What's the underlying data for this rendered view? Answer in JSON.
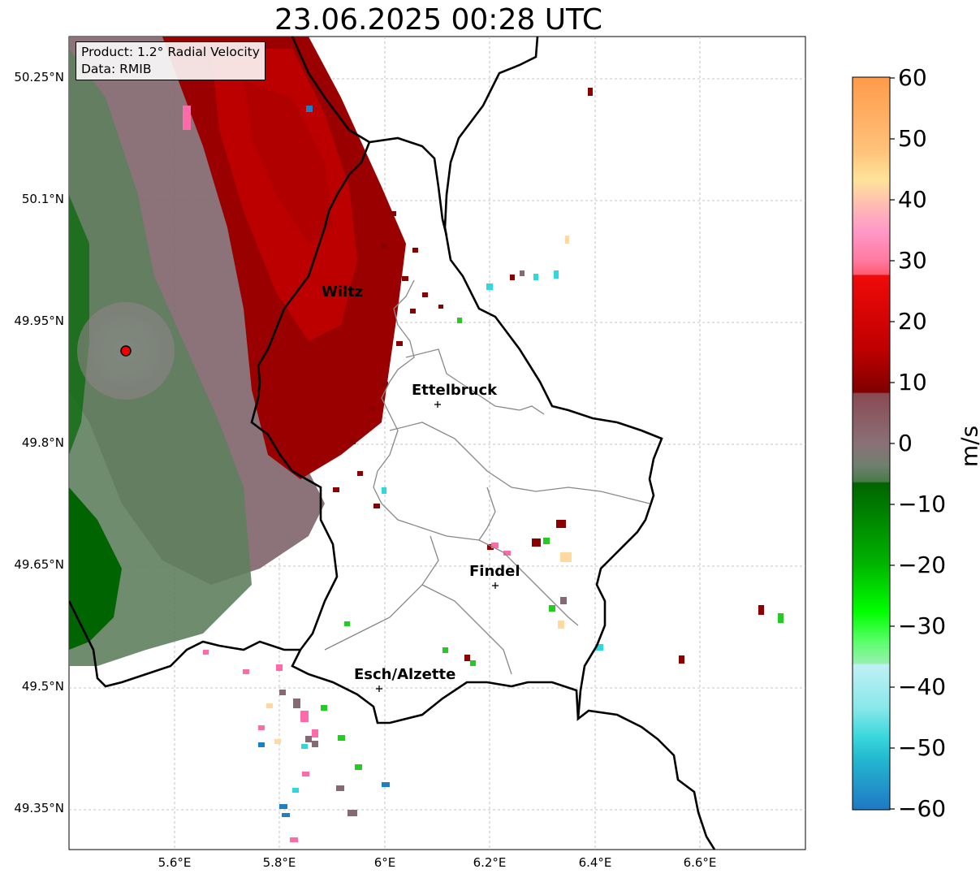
{
  "title": "23.06.2025 00:28 UTC",
  "info_box": {
    "product": "Product: 1.2° Radial Velocity",
    "data": "Data: RMIB"
  },
  "lat_labels": [
    "50.25°N",
    "50.1°N",
    "49.95°N",
    "49.8°N",
    "49.65°N",
    "49.5°N",
    "49.35°N"
  ],
  "lon_labels": [
    "5.6°E",
    "5.8°E",
    "6°E",
    "6.2°E",
    "6.4°E",
    "6.6°E"
  ],
  "cities": [
    {
      "name": "Wiltz",
      "lon": 5.93,
      "lat": 49.97
    },
    {
      "name": "Ettelbruck",
      "lon": 6.1,
      "lat": 49.85
    },
    {
      "name": "Findel",
      "lon": 6.21,
      "lat": 49.63
    },
    {
      "name": "Esch/Alzette",
      "lon": 5.99,
      "lat": 49.5
    }
  ],
  "radar_site": {
    "lon": 5.505,
    "lat": 49.915
  },
  "colorbar": {
    "label": "m/s",
    "min": -60,
    "max": 60,
    "ticks": [
      "60",
      "50",
      "40",
      "30",
      "20",
      "10",
      "0",
      "−10",
      "−20",
      "−30",
      "−40",
      "−50",
      "−60"
    ],
    "colors": {
      "orange": "#ff9a4a",
      "peach": "#ffd9a0",
      "pink": "#ff8acc",
      "red": "#ee0a0a",
      "dark_red": "#7a0000",
      "mauve": "#866a72",
      "grey_green": "#6a7f6a",
      "dark_green": "#006400",
      "bright_green": "#00d800",
      "light_cyan": "#b0eaf0",
      "cyan": "#2ed8dc",
      "blue": "#1f7fc6"
    }
  },
  "extent": {
    "lon_min": 5.4,
    "lon_max": 6.8,
    "lat_min": 49.28,
    "lat_max": 50.32
  }
}
